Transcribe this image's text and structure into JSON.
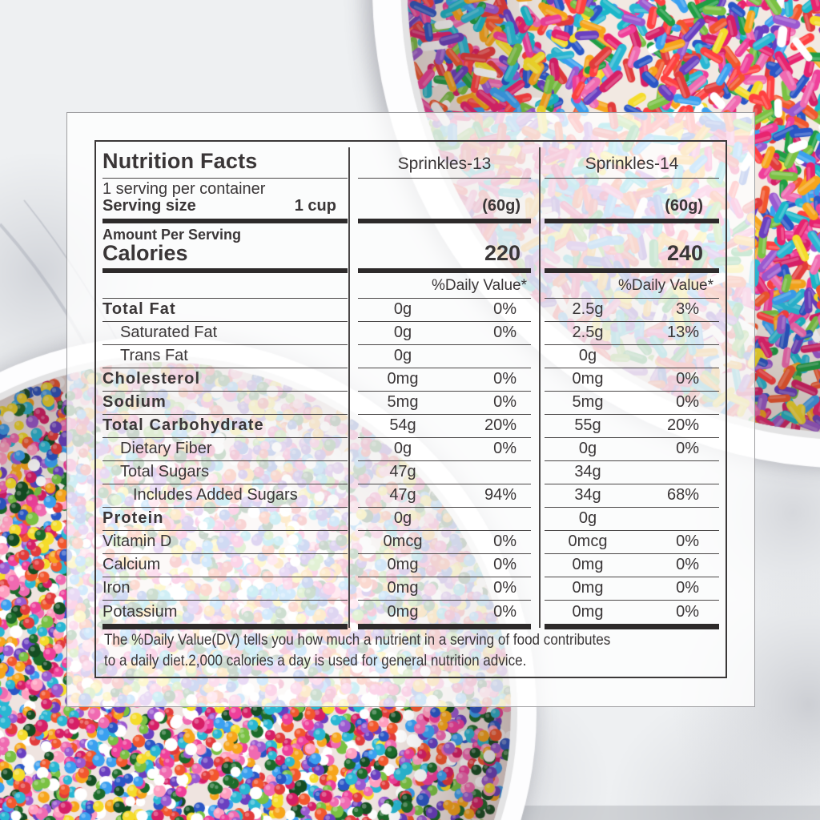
{
  "background": {
    "marble_color": "#eef0f2",
    "bowl_color": "#fdfdfe",
    "rod_sprinkle_colors": [
      "#e23b3b",
      "#f2572d",
      "#f7a51b",
      "#f5dc2a",
      "#7ac143",
      "#1f9d44",
      "#29b7d3",
      "#3aa0f0",
      "#2a56c6",
      "#6a3fc0",
      "#9b59d0",
      "#ef3f9a",
      "#f06ab1",
      "#d61f66",
      "#ffffff",
      "#e8236f",
      "#ff4040",
      "#19b7c9"
    ],
    "ball_sprinkle_colors": [
      "#e23b3b",
      "#f2572d",
      "#f7a51b",
      "#f5dc2a",
      "#7ac143",
      "#1c6b2a",
      "#29b7d3",
      "#3aa0f0",
      "#2a56c6",
      "#6a3fc0",
      "#9b59d0",
      "#ef3f9a",
      "#f06ab1",
      "#d61f66",
      "#ffffff",
      "#144d22",
      "#ff9fc0",
      "#ffffff"
    ]
  },
  "label": {
    "title": "Nutrition Facts",
    "serving_per_container": "1 serving per container",
    "serving_size_label": "Serving size",
    "serving_size_value": "1 cup",
    "amount_per_serving": "Amount Per Serving",
    "calories_label": "Calories",
    "daily_value_header": "%Daily Value*",
    "footnote": "The %Daily Value(DV) tells you how much a nutrient in a serving of food contributes\nto a daily diet.2,000 calories a day is used for general nutrition advice.",
    "text_color": "#3a3637",
    "bar_color": "#2d2a2a"
  },
  "products": [
    {
      "name": "Sprinkles-13",
      "weight": "(60g)",
      "calories": "220"
    },
    {
      "name": "Sprinkles-14",
      "weight": "(60g)",
      "calories": "240"
    }
  ],
  "rows": [
    {
      "label": "Total Fat",
      "bold": true,
      "indent": 0,
      "values": [
        {
          "amount": "0g",
          "dv": "0%"
        },
        {
          "amount": "2.5g",
          "dv": "3%"
        }
      ]
    },
    {
      "label": "Saturated Fat",
      "bold": false,
      "indent": 1,
      "values": [
        {
          "amount": "0g",
          "dv": "0%"
        },
        {
          "amount": "2.5g",
          "dv": "13%"
        }
      ]
    },
    {
      "label": "Trans Fat",
      "bold": false,
      "indent": 1,
      "values": [
        {
          "amount": "0g",
          "dv": ""
        },
        {
          "amount": "0g",
          "dv": ""
        }
      ]
    },
    {
      "label": "Cholesterol",
      "bold": true,
      "indent": 0,
      "values": [
        {
          "amount": "0mg",
          "dv": "0%"
        },
        {
          "amount": "0mg",
          "dv": "0%"
        }
      ]
    },
    {
      "label": "Sodium",
      "bold": true,
      "indent": 0,
      "values": [
        {
          "amount": "5mg",
          "dv": "0%"
        },
        {
          "amount": "5mg",
          "dv": "0%"
        }
      ]
    },
    {
      "label": "Total Carbohydrate",
      "bold": true,
      "indent": 0,
      "values": [
        {
          "amount": "54g",
          "dv": "20%"
        },
        {
          "amount": "55g",
          "dv": "20%"
        }
      ]
    },
    {
      "label": "Dietary Fiber",
      "bold": false,
      "indent": 1,
      "values": [
        {
          "amount": "0g",
          "dv": "0%"
        },
        {
          "amount": "0g",
          "dv": "0%"
        }
      ]
    },
    {
      "label": "Total Sugars",
      "bold": false,
      "indent": 1,
      "values": [
        {
          "amount": "47g",
          "dv": ""
        },
        {
          "amount": "34g",
          "dv": ""
        }
      ]
    },
    {
      "label": "Includes Added Sugars",
      "bold": false,
      "indent": 2,
      "values": [
        {
          "amount": "47g",
          "dv": "94%"
        },
        {
          "amount": "34g",
          "dv": "68%"
        }
      ]
    },
    {
      "label": "Protein",
      "bold": true,
      "indent": 0,
      "values": [
        {
          "amount": "0g",
          "dv": ""
        },
        {
          "amount": "0g",
          "dv": ""
        }
      ]
    },
    {
      "label": "Vitamin D",
      "bold": false,
      "indent": 0,
      "values": [
        {
          "amount": "0mcg",
          "dv": "0%"
        },
        {
          "amount": "0mcg",
          "dv": "0%"
        }
      ]
    },
    {
      "label": "Calcium",
      "bold": false,
      "indent": 0,
      "values": [
        {
          "amount": "0mg",
          "dv": "0%"
        },
        {
          "amount": "0mg",
          "dv": "0%"
        }
      ]
    },
    {
      "label": "Iron",
      "bold": false,
      "indent": 0,
      "values": [
        {
          "amount": "0mg",
          "dv": "0%"
        },
        {
          "amount": "0mg",
          "dv": "0%"
        }
      ]
    },
    {
      "label": "Potassium",
      "bold": false,
      "indent": 0,
      "values": [
        {
          "amount": "0mg",
          "dv": "0%"
        },
        {
          "amount": "0mg",
          "dv": "0%"
        }
      ]
    }
  ]
}
